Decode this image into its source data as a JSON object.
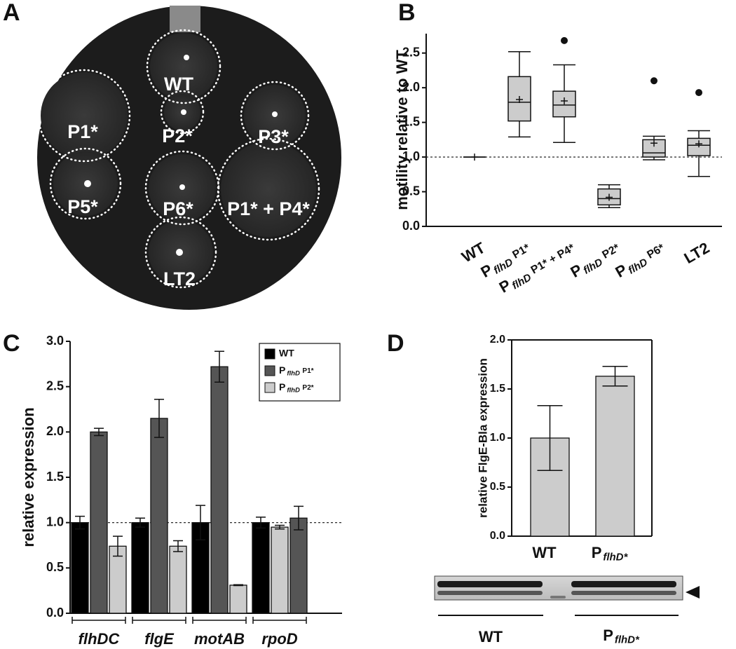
{
  "panel_labels": [
    "A",
    "B",
    "C",
    "D"
  ],
  "plate": {
    "labels": [
      "WT",
      "P1*",
      "P2*",
      "P3*",
      "P5*",
      "P6*",
      "P1* + P4*",
      "LT2"
    ]
  },
  "chart_data": [
    {
      "type": "box",
      "ylabel": "motility relative to WT",
      "categories": [
        "WT",
        {
          "main": "P",
          "sub": "flhD",
          "rest": "P1*"
        },
        {
          "main": "P",
          "sub": "flhD",
          "rest": "P1* + P4*"
        },
        {
          "main": "P",
          "sub": "flhD",
          "rest": "P2*"
        },
        {
          "main": "P",
          "sub": "flhD",
          "rest": "P6*"
        },
        "LT2"
      ],
      "boxes": [
        {
          "min": 1,
          "q1": 1,
          "median": 1,
          "q3": 1,
          "max": 1,
          "mean": 1
        },
        {
          "min": 1.29,
          "q1": 1.52,
          "median": 1.79,
          "q3": 2.16,
          "max": 2.52,
          "mean": 1.83
        },
        {
          "min": 1.21,
          "q1": 1.58,
          "median": 1.75,
          "q3": 1.95,
          "max": 2.33,
          "mean": 1.81,
          "outliers": [
            2.68
          ]
        },
        {
          "min": 0.27,
          "q1": 0.31,
          "median": 0.4,
          "q3": 0.54,
          "max": 0.6,
          "mean": 0.42
        },
        {
          "min": 0.96,
          "q1": 1.0,
          "median": 1.06,
          "q3": 1.25,
          "max": 1.3,
          "mean": 1.2,
          "outliers": [
            2.1
          ]
        },
        {
          "min": 0.72,
          "q1": 1.02,
          "median": 1.17,
          "q3": 1.27,
          "max": 1.38,
          "mean": 1.19,
          "outliers": [
            1.93
          ]
        }
      ],
      "color": "#cccccc",
      "ref_line": 1,
      "ylim": [
        0,
        2.78
      ],
      "yticks": [
        {
          "value": 0,
          "label": "0.0"
        },
        {
          "value": 0.5,
          "label": "0.5"
        },
        {
          "value": 1,
          "label": "1.0"
        },
        {
          "value": 1.5,
          "label": "1.5"
        },
        {
          "value": 2,
          "label": "2.0"
        },
        {
          "value": 2.5,
          "label": "2.5"
        }
      ]
    },
    {
      "type": "bar",
      "ylabel": "relative expression",
      "italic_categories": true,
      "categories": [
        "flhDC",
        "flgE",
        "motAB",
        "rpoD"
      ],
      "series": [
        {
          "name": "WT",
          "color": "#000000",
          "values": [
            1.0,
            1.0,
            1.0,
            1.0
          ],
          "errors": [
            0.07,
            0.05,
            0.19,
            0.06
          ]
        },
        {
          "name": {
            "main": "P",
            "sub": "flhD",
            "rest": "P1*"
          },
          "color": "#555555",
          "colors": [
            "#555555",
            "#555555",
            "#555555",
            "#cccccc"
          ],
          "values": [
            2.0,
            2.15,
            2.72,
            0.95
          ],
          "errors": [
            0.04,
            0.21,
            0.17,
            0.02
          ]
        },
        {
          "name": {
            "main": "P",
            "sub": "flhD",
            "rest": "P2*"
          },
          "color": "#cccccc",
          "colors": [
            "#cccccc",
            "#cccccc",
            "#cccccc",
            "#555555"
          ],
          "values": [
            0.74,
            0.74,
            0.31,
            1.05
          ],
          "errors": [
            0.11,
            0.06,
            0.005,
            0.13
          ]
        }
      ],
      "ref_line": 1,
      "legend": "upper right",
      "ylim": [
        0,
        3
      ],
      "yticks": [
        {
          "value": 0,
          "label": "0.0"
        },
        {
          "value": 0.5,
          "label": "0.5"
        },
        {
          "value": 1,
          "label": "1.0"
        },
        {
          "value": 1.5,
          "label": "1.5"
        },
        {
          "value": 2,
          "label": "2.0"
        },
        {
          "value": 2.5,
          "label": "2.5"
        },
        {
          "value": 3,
          "label": "3.0"
        }
      ]
    },
    {
      "type": "bar",
      "ylabel": "relative FlgE-Bla expression",
      "categories": [
        "WT",
        {
          "main": "P",
          "sub": "flhD*"
        }
      ],
      "series": [
        {
          "color": "#cccccc",
          "values": [
            1.0,
            1.63
          ],
          "errors": [
            0.33,
            0.1
          ]
        }
      ],
      "ylim": [
        0,
        2
      ],
      "yticks": [
        {
          "value": 0,
          "label": "0.0"
        },
        {
          "value": 0.5,
          "label": "0.5"
        },
        {
          "value": 1,
          "label": "1.0"
        },
        {
          "value": 1.5,
          "label": "1.5"
        },
        {
          "value": 2,
          "label": "2.0"
        }
      ],
      "blot_labels": [
        "WT",
        {
          "main": "P",
          "sub": "flhD*"
        }
      ]
    }
  ]
}
